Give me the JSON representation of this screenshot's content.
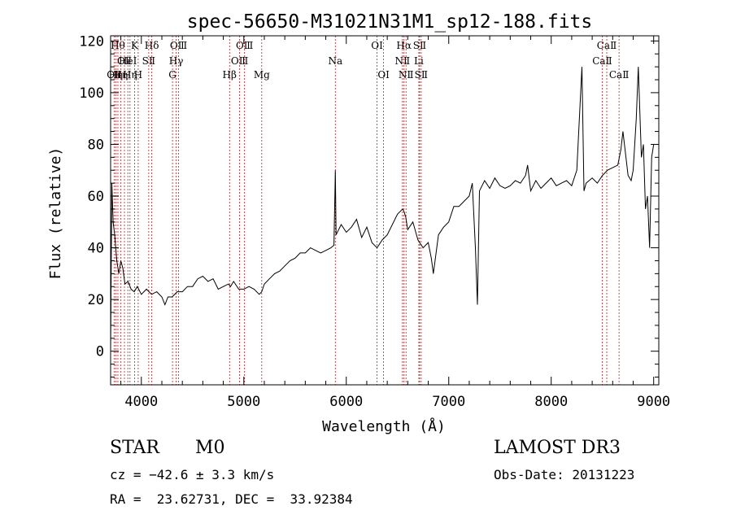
{
  "chart_data": {
    "type": "line",
    "title": "spec-56650-M31021N31M1_sp12-188.fits",
    "xlabel": "Wavelength (Å)",
    "ylabel": "Flux (relative)",
    "xlim": [
      3700,
      9050
    ],
    "ylim": [
      -13,
      122
    ],
    "x_ticks": [
      4000,
      5000,
      6000,
      7000,
      8000,
      9000
    ],
    "y_ticks": [
      0,
      20,
      40,
      60,
      80,
      100,
      120
    ],
    "line_color": "#000000",
    "marker_color": "#b22222",
    "series": [
      {
        "name": "flux",
        "x": [
          3700,
          3712,
          3725,
          3740,
          3760,
          3780,
          3800,
          3820,
          3840,
          3870,
          3900,
          3930,
          3960,
          4000,
          4050,
          4100,
          4150,
          4200,
          4230,
          4260,
          4300,
          4350,
          4400,
          4450,
          4500,
          4550,
          4600,
          4650,
          4700,
          4750,
          4800,
          4850,
          4870,
          4900,
          4950,
          5000,
          5050,
          5100,
          5150,
          5175,
          5200,
          5250,
          5300,
          5350,
          5400,
          5450,
          5500,
          5550,
          5600,
          5650,
          5700,
          5750,
          5800,
          5850,
          5880,
          5893,
          5900,
          5950,
          6000,
          6050,
          6100,
          6150,
          6200,
          6250,
          6300,
          6350,
          6400,
          6450,
          6500,
          6550,
          6563,
          6580,
          6600,
          6650,
          6700,
          6750,
          6800,
          6830,
          6850,
          6900,
          6950,
          7000,
          7050,
          7100,
          7150,
          7200,
          7230,
          7260,
          7280,
          7300,
          7350,
          7400,
          7450,
          7500,
          7550,
          7600,
          7650,
          7700,
          7750,
          7770,
          7800,
          7850,
          7900,
          7950,
          8000,
          8050,
          8100,
          8150,
          8200,
          8250,
          8300,
          8320,
          8340,
          8400,
          8450,
          8500,
          8550,
          8600,
          8650,
          8680,
          8700,
          8750,
          8780,
          8800,
          8830,
          8850,
          8880,
          8900,
          8920,
          8940,
          8960,
          8980,
          9000
        ],
        "y": [
          0,
          65,
          50,
          45,
          35,
          30,
          35,
          32,
          26,
          27,
          24,
          23,
          25,
          22,
          24,
          22,
          23,
          21,
          18,
          21,
          21,
          23,
          23,
          25,
          25,
          28,
          29,
          27,
          28,
          24,
          25,
          26,
          25,
          27,
          24,
          24,
          25,
          24,
          22,
          23,
          26,
          28,
          30,
          31,
          33,
          35,
          36,
          38,
          38,
          40,
          39,
          38,
          39,
          40,
          41,
          70,
          45,
          49,
          46,
          48,
          51,
          44,
          48,
          42,
          40,
          43,
          45,
          49,
          53,
          55,
          54,
          52,
          47,
          50,
          43,
          40,
          42,
          36,
          30,
          45,
          48,
          50,
          56,
          56,
          58,
          60,
          65,
          40,
          18,
          62,
          66,
          63,
          67,
          64,
          63,
          64,
          66,
          65,
          68,
          72,
          62,
          66,
          63,
          65,
          67,
          64,
          65,
          66,
          64,
          70,
          110,
          62,
          65,
          67,
          65,
          68,
          70,
          71,
          72,
          78,
          85,
          68,
          66,
          70,
          90,
          110,
          75,
          80,
          55,
          60,
          40,
          75,
          80
        ]
      }
    ],
    "line_markers": [
      {
        "wave": 3734,
        "label": "OⅡ",
        "row": 2
      },
      {
        "wave": 3750,
        "label": "Hη",
        "row": 2
      },
      {
        "wave": 3771,
        "label": "Hθ",
        "row": 0
      },
      {
        "wave": 3798,
        "label": "Hη",
        "row": 2
      },
      {
        "wave": 3835,
        "label": "OⅡ",
        "row": 1
      },
      {
        "wave": 3868,
        "label": "HeⅠ",
        "row": 1
      },
      {
        "wave": 3889,
        "label": "Hη",
        "row": 2
      },
      {
        "wave": 3934,
        "label": "K",
        "row": 0
      },
      {
        "wave": 3969,
        "label": "H",
        "row": 2
      },
      {
        "wave": 4072,
        "label": "SⅡ",
        "row": 1
      },
      {
        "wave": 4102,
        "label": "Hδ",
        "row": 0
      },
      {
        "wave": 4304,
        "label": "G",
        "row": 2
      },
      {
        "wave": 4340,
        "label": "Hγ",
        "row": 1
      },
      {
        "wave": 4363,
        "label": "OⅢ",
        "row": 0
      },
      {
        "wave": 4861,
        "label": "Hβ",
        "row": 2
      },
      {
        "wave": 4959,
        "label": "OⅢ",
        "row": 1
      },
      {
        "wave": 5007,
        "label": "OⅢ",
        "row": 0
      },
      {
        "wave": 5175,
        "label": "Mg",
        "row": 2
      },
      {
        "wave": 5893,
        "label": "Na",
        "row": 1
      },
      {
        "wave": 6300,
        "label": "OⅠ",
        "row": 0
      },
      {
        "wave": 6364,
        "label": "OⅠ",
        "row": 2
      },
      {
        "wave": 6548,
        "label": "NⅡ",
        "row": 1
      },
      {
        "wave": 6563,
        "label": "Hα",
        "row": 0
      },
      {
        "wave": 6583,
        "label": "NⅡ",
        "row": 2
      },
      {
        "wave": 6708,
        "label": "Li",
        "row": 1
      },
      {
        "wave": 6716,
        "label": "SⅡ",
        "row": 0
      },
      {
        "wave": 6731,
        "label": "SⅡ",
        "row": 2
      },
      {
        "wave": 8498,
        "label": "CaⅡ",
        "row": 1
      },
      {
        "wave": 8542,
        "label": "CaⅡ",
        "row": 0
      },
      {
        "wave": 8662,
        "label": "CaⅡ",
        "row": 2
      }
    ]
  },
  "info": {
    "object_type": "STAR",
    "subclass": "M0",
    "survey": "LAMOST DR3",
    "cz": "cz = −42.6 ± 3.3 km/s",
    "obs_date": "Obs-Date: 20131223",
    "coords": "RA =  23.62731, DEC =  33.92384"
  }
}
